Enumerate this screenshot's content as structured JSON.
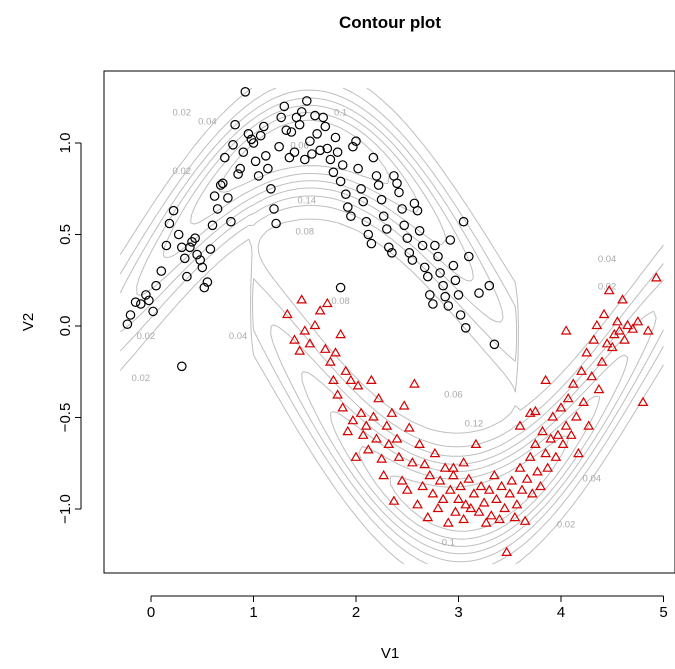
{
  "chart_data": {
    "type": "scatter",
    "title": "Contour plot",
    "xlabel": "V1",
    "ylabel": "V2",
    "xlim": [
      -0.3,
      5.0
    ],
    "ylim": [
      -1.3,
      1.3
    ],
    "xticks": [
      "0",
      "1",
      "2",
      "3",
      "4",
      "5"
    ],
    "yticks": [
      "-1.0",
      "-0.5",
      "0.0",
      "0.5",
      "1.0"
    ],
    "contour_labels": [
      "0.02",
      "0.04",
      "0.06",
      "0.08",
      "0.1",
      "0.12",
      "0.14"
    ],
    "contour_color": "#bebebe",
    "series": [
      {
        "marker": "circle",
        "color": "#000000",
        "points": [
          [
            -0.23,
            0.01
          ],
          [
            -0.2,
            0.06
          ],
          [
            -0.15,
            0.13
          ],
          [
            -0.1,
            0.12
          ],
          [
            -0.05,
            0.17
          ],
          [
            -0.02,
            0.14
          ],
          [
            0.02,
            0.08
          ],
          [
            0.05,
            0.22
          ],
          [
            0.1,
            0.3
          ],
          [
            0.15,
            0.44
          ],
          [
            0.18,
            0.56
          ],
          [
            0.22,
            0.63
          ],
          [
            0.27,
            0.5
          ],
          [
            0.3,
            0.43
          ],
          [
            0.33,
            0.37
          ],
          [
            0.35,
            0.27
          ],
          [
            0.38,
            0.43
          ],
          [
            0.4,
            0.46
          ],
          [
            0.43,
            0.48
          ],
          [
            0.45,
            0.39
          ],
          [
            0.48,
            0.36
          ],
          [
            0.5,
            0.32
          ],
          [
            0.52,
            0.21
          ],
          [
            0.55,
            0.24
          ],
          [
            0.58,
            0.42
          ],
          [
            0.6,
            0.55
          ],
          [
            0.62,
            0.71
          ],
          [
            0.65,
            0.64
          ],
          [
            0.68,
            0.77
          ],
          [
            0.7,
            0.78
          ],
          [
            0.72,
            0.92
          ],
          [
            0.75,
            0.7
          ],
          [
            0.78,
            0.57
          ],
          [
            0.8,
            0.99
          ],
          [
            0.82,
            1.1
          ],
          [
            0.85,
            0.83
          ],
          [
            0.87,
            0.86
          ],
          [
            0.9,
            0.95
          ],
          [
            0.92,
            1.28
          ],
          [
            0.95,
            1.05
          ],
          [
            0.98,
            1.02
          ],
          [
            1.0,
            1.0
          ],
          [
            1.02,
            0.9
          ],
          [
            1.05,
            0.82
          ],
          [
            1.07,
            1.04
          ],
          [
            1.1,
            1.09
          ],
          [
            1.12,
            0.93
          ],
          [
            1.14,
            0.86
          ],
          [
            1.17,
            0.75
          ],
          [
            1.2,
            0.64
          ],
          [
            1.22,
            0.56
          ],
          [
            1.25,
            0.98
          ],
          [
            1.27,
            1.14
          ],
          [
            1.3,
            1.2
          ],
          [
            1.32,
            1.07
          ],
          [
            1.35,
            0.92
          ],
          [
            1.37,
            1.06
          ],
          [
            1.4,
            0.95
          ],
          [
            1.42,
            1.14
          ],
          [
            1.45,
            1.1
          ],
          [
            1.47,
            1.17
          ],
          [
            1.5,
            0.91
          ],
          [
            1.52,
            1.23
          ],
          [
            1.55,
            1.01
          ],
          [
            1.57,
            0.94
          ],
          [
            1.6,
            1.15
          ],
          [
            1.62,
            1.05
          ],
          [
            1.65,
            0.96
          ],
          [
            1.68,
            1.14
          ],
          [
            1.7,
            1.09
          ],
          [
            1.72,
            0.97
          ],
          [
            1.75,
            0.91
          ],
          [
            1.78,
            0.84
          ],
          [
            1.8,
            1.03
          ],
          [
            1.82,
            0.95
          ],
          [
            1.85,
            0.79
          ],
          [
            1.87,
            0.88
          ],
          [
            1.9,
            0.72
          ],
          [
            1.92,
            0.65
          ],
          [
            1.95,
            0.6
          ],
          [
            1.97,
            0.98
          ],
          [
            2.0,
            1.01
          ],
          [
            2.02,
            0.86
          ],
          [
            2.05,
            0.75
          ],
          [
            2.07,
            0.68
          ],
          [
            2.1,
            0.57
          ],
          [
            2.12,
            0.5
          ],
          [
            2.15,
            0.45
          ],
          [
            2.17,
            0.92
          ],
          [
            2.2,
            0.82
          ],
          [
            2.22,
            0.77
          ],
          [
            2.25,
            0.69
          ],
          [
            2.27,
            0.6
          ],
          [
            2.3,
            0.53
          ],
          [
            2.32,
            0.43
          ],
          [
            2.35,
            0.4
          ],
          [
            2.37,
            0.82
          ],
          [
            2.4,
            0.78
          ],
          [
            2.42,
            0.73
          ],
          [
            2.45,
            0.64
          ],
          [
            2.47,
            0.55
          ],
          [
            2.5,
            0.48
          ],
          [
            2.52,
            0.4
          ],
          [
            2.55,
            0.36
          ],
          [
            2.57,
            0.67
          ],
          [
            2.6,
            0.63
          ],
          [
            2.62,
            0.52
          ],
          [
            2.65,
            0.44
          ],
          [
            2.67,
            0.32
          ],
          [
            2.7,
            0.27
          ],
          [
            2.72,
            0.17
          ],
          [
            2.75,
            0.12
          ],
          [
            2.77,
            0.44
          ],
          [
            2.8,
            0.38
          ],
          [
            2.82,
            0.29
          ],
          [
            2.85,
            0.22
          ],
          [
            2.87,
            0.16
          ],
          [
            2.9,
            0.11
          ],
          [
            2.92,
            0.47
          ],
          [
            2.95,
            0.33
          ],
          [
            2.97,
            0.25
          ],
          [
            3.0,
            0.17
          ],
          [
            3.02,
            0.06
          ],
          [
            3.05,
            0.57
          ],
          [
            3.07,
            -0.01
          ],
          [
            3.1,
            0.38
          ],
          [
            3.2,
            0.18
          ],
          [
            3.3,
            0.22
          ],
          [
            3.35,
            -0.1
          ],
          [
            1.85,
            0.21
          ],
          [
            0.3,
            -0.22
          ]
        ]
      },
      {
        "marker": "triangle",
        "color": "#d40000",
        "points": [
          [
            1.33,
            0.06
          ],
          [
            1.4,
            -0.08
          ],
          [
            1.45,
            -0.14
          ],
          [
            1.47,
            0.14
          ],
          [
            1.5,
            -0.03
          ],
          [
            1.55,
            -0.1
          ],
          [
            1.6,
            0.0
          ],
          [
            1.65,
            0.08
          ],
          [
            1.7,
            -0.13
          ],
          [
            1.72,
            0.12
          ],
          [
            1.75,
            -0.2
          ],
          [
            1.78,
            -0.3
          ],
          [
            1.8,
            -0.15
          ],
          [
            1.82,
            -0.38
          ],
          [
            1.85,
            -0.05
          ],
          [
            1.87,
            -0.45
          ],
          [
            1.9,
            -0.25
          ],
          [
            1.92,
            -0.58
          ],
          [
            1.95,
            -0.3
          ],
          [
            1.97,
            -0.52
          ],
          [
            2.0,
            -0.72
          ],
          [
            2.02,
            -0.33
          ],
          [
            2.05,
            -0.48
          ],
          [
            2.07,
            -0.6
          ],
          [
            2.1,
            -0.55
          ],
          [
            2.12,
            -0.68
          ],
          [
            2.15,
            -0.3
          ],
          [
            2.17,
            -0.5
          ],
          [
            2.2,
            -0.62
          ],
          [
            2.22,
            -0.4
          ],
          [
            2.25,
            -0.73
          ],
          [
            2.27,
            -0.82
          ],
          [
            2.3,
            -0.55
          ],
          [
            2.32,
            -0.65
          ],
          [
            2.35,
            -0.48
          ],
          [
            2.37,
            -0.96
          ],
          [
            2.4,
            -0.62
          ],
          [
            2.42,
            -0.72
          ],
          [
            2.45,
            -0.85
          ],
          [
            2.47,
            -0.44
          ],
          [
            2.5,
            -0.9
          ],
          [
            2.52,
            -0.56
          ],
          [
            2.55,
            -0.75
          ],
          [
            2.57,
            -0.32
          ],
          [
            2.6,
            -0.98
          ],
          [
            2.62,
            -0.65
          ],
          [
            2.65,
            -0.88
          ],
          [
            2.67,
            -0.76
          ],
          [
            2.7,
            -1.05
          ],
          [
            2.72,
            -0.82
          ],
          [
            2.75,
            -0.92
          ],
          [
            2.77,
            -0.7
          ],
          [
            2.8,
            -1.0
          ],
          [
            2.82,
            -0.85
          ],
          [
            2.85,
            -0.95
          ],
          [
            2.87,
            -0.78
          ],
          [
            2.9,
            -1.08
          ],
          [
            2.92,
            -0.9
          ],
          [
            2.95,
            -0.82
          ],
          [
            2.97,
            -1.02
          ],
          [
            3.0,
            -0.95
          ],
          [
            3.02,
            -0.88
          ],
          [
            3.05,
            -1.06
          ],
          [
            3.07,
            -0.98
          ],
          [
            3.1,
            -0.84
          ],
          [
            3.12,
            -1.0
          ],
          [
            3.15,
            -0.92
          ],
          [
            3.17,
            -0.65
          ],
          [
            3.2,
            -1.02
          ],
          [
            3.22,
            -0.88
          ],
          [
            3.25,
            -0.97
          ],
          [
            3.27,
            -1.08
          ],
          [
            3.3,
            -0.9
          ],
          [
            3.32,
            -1.04
          ],
          [
            3.35,
            -0.82
          ],
          [
            3.37,
            -0.95
          ],
          [
            3.4,
            -1.06
          ],
          [
            3.42,
            -0.88
          ],
          [
            3.45,
            -1.0
          ],
          [
            3.47,
            -1.24
          ],
          [
            3.5,
            -0.92
          ],
          [
            3.52,
            -0.85
          ],
          [
            3.55,
            -1.05
          ],
          [
            3.57,
            -0.98
          ],
          [
            3.6,
            -0.78
          ],
          [
            3.62,
            -0.9
          ],
          [
            3.65,
            -1.07
          ],
          [
            3.67,
            -0.84
          ],
          [
            3.7,
            -0.72
          ],
          [
            3.72,
            -0.92
          ],
          [
            3.75,
            -0.65
          ],
          [
            3.77,
            -0.8
          ],
          [
            3.8,
            -0.88
          ],
          [
            3.82,
            -0.58
          ],
          [
            3.85,
            -0.7
          ],
          [
            3.87,
            -0.78
          ],
          [
            3.9,
            -0.62
          ],
          [
            3.92,
            -0.5
          ],
          [
            3.95,
            -0.72
          ],
          [
            3.97,
            -0.6
          ],
          [
            4.0,
            -0.45
          ],
          [
            4.02,
            -0.65
          ],
          [
            4.05,
            -0.55
          ],
          [
            4.07,
            -0.4
          ],
          [
            4.1,
            -0.6
          ],
          [
            4.12,
            -0.32
          ],
          [
            4.15,
            -0.5
          ],
          [
            4.17,
            -0.7
          ],
          [
            4.2,
            -0.25
          ],
          [
            4.22,
            -0.42
          ],
          [
            4.25,
            -0.15
          ],
          [
            4.27,
            -0.55
          ],
          [
            4.3,
            -0.28
          ],
          [
            4.32,
            -0.08
          ],
          [
            4.35,
            0.0
          ],
          [
            4.37,
            -0.35
          ],
          [
            4.4,
            -0.2
          ],
          [
            4.42,
            0.06
          ],
          [
            4.45,
            -0.1
          ],
          [
            4.47,
            0.19
          ],
          [
            4.5,
            -0.12
          ],
          [
            4.52,
            -0.05
          ],
          [
            4.55,
            0.02
          ],
          [
            4.57,
            -0.03
          ],
          [
            4.6,
            0.14
          ],
          [
            4.62,
            -0.08
          ],
          [
            4.65,
            0.0
          ],
          [
            4.7,
            -0.02
          ],
          [
            4.75,
            0.02
          ],
          [
            4.8,
            -0.42
          ],
          [
            4.85,
            -0.03
          ],
          [
            4.93,
            0.26
          ],
          [
            4.05,
            -0.03
          ],
          [
            3.85,
            -0.3
          ],
          [
            3.7,
            -0.48
          ],
          [
            3.75,
            -0.47
          ],
          [
            3.6,
            -0.55
          ],
          [
            2.95,
            -0.78
          ],
          [
            3.05,
            -0.75
          ]
        ]
      }
    ]
  }
}
